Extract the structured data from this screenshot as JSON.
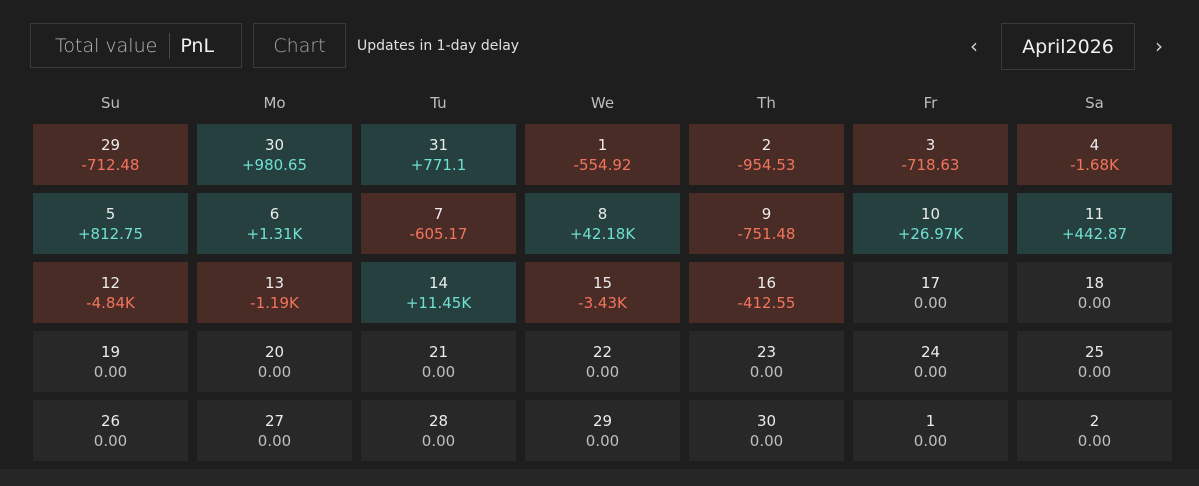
{
  "toolbar": {
    "total_value_label": "Total value",
    "pnl_label": "PnL",
    "chart_label": "Chart",
    "delay_note": "Updates in 1-day delay",
    "prev_icon": "‹",
    "next_icon": "›",
    "month_label": "April2026"
  },
  "weekdays": [
    "Su",
    "Mo",
    "Tu",
    "We",
    "Th",
    "Fr",
    "Sa"
  ],
  "colors": {
    "gain_bg": "#26403f",
    "loss_bg": "#4a2c27",
    "neutral_bg": "#282828",
    "gain_text": "#6fe0d2",
    "loss_text": "#f2745c"
  },
  "weeks": [
    [
      {
        "day": "29",
        "value": "-712.48",
        "status": "loss"
      },
      {
        "day": "30",
        "value": "+980.65",
        "status": "gain"
      },
      {
        "day": "31",
        "value": "+771.1",
        "status": "gain"
      },
      {
        "day": "1",
        "value": "-554.92",
        "status": "loss"
      },
      {
        "day": "2",
        "value": "-954.53",
        "status": "loss"
      },
      {
        "day": "3",
        "value": "-718.63",
        "status": "loss"
      },
      {
        "day": "4",
        "value": "-1.68K",
        "status": "loss"
      }
    ],
    [
      {
        "day": "5",
        "value": "+812.75",
        "status": "gain"
      },
      {
        "day": "6",
        "value": "+1.31K",
        "status": "gain"
      },
      {
        "day": "7",
        "value": "-605.17",
        "status": "loss"
      },
      {
        "day": "8",
        "value": "+42.18K",
        "status": "gain"
      },
      {
        "day": "9",
        "value": "-751.48",
        "status": "loss"
      },
      {
        "day": "10",
        "value": "+26.97K",
        "status": "gain"
      },
      {
        "day": "11",
        "value": "+442.87",
        "status": "gain"
      }
    ],
    [
      {
        "day": "12",
        "value": "-4.84K",
        "status": "loss"
      },
      {
        "day": "13",
        "value": "-1.19K",
        "status": "loss"
      },
      {
        "day": "14",
        "value": "+11.45K",
        "status": "gain"
      },
      {
        "day": "15",
        "value": "-3.43K",
        "status": "loss"
      },
      {
        "day": "16",
        "value": "-412.55",
        "status": "loss"
      },
      {
        "day": "17",
        "value": "0.00",
        "status": "neutral"
      },
      {
        "day": "18",
        "value": "0.00",
        "status": "neutral"
      }
    ],
    [
      {
        "day": "19",
        "value": "0.00",
        "status": "neutral"
      },
      {
        "day": "20",
        "value": "0.00",
        "status": "neutral"
      },
      {
        "day": "21",
        "value": "0.00",
        "status": "neutral"
      },
      {
        "day": "22",
        "value": "0.00",
        "status": "neutral"
      },
      {
        "day": "23",
        "value": "0.00",
        "status": "neutral"
      },
      {
        "day": "24",
        "value": "0.00",
        "status": "neutral"
      },
      {
        "day": "25",
        "value": "0.00",
        "status": "neutral"
      }
    ],
    [
      {
        "day": "26",
        "value": "0.00",
        "status": "neutral"
      },
      {
        "day": "27",
        "value": "0.00",
        "status": "neutral"
      },
      {
        "day": "28",
        "value": "0.00",
        "status": "neutral"
      },
      {
        "day": "29",
        "value": "0.00",
        "status": "neutral"
      },
      {
        "day": "30",
        "value": "0.00",
        "status": "neutral"
      },
      {
        "day": "1",
        "value": "0.00",
        "status": "neutral"
      },
      {
        "day": "2",
        "value": "0.00",
        "status": "neutral"
      }
    ]
  ]
}
